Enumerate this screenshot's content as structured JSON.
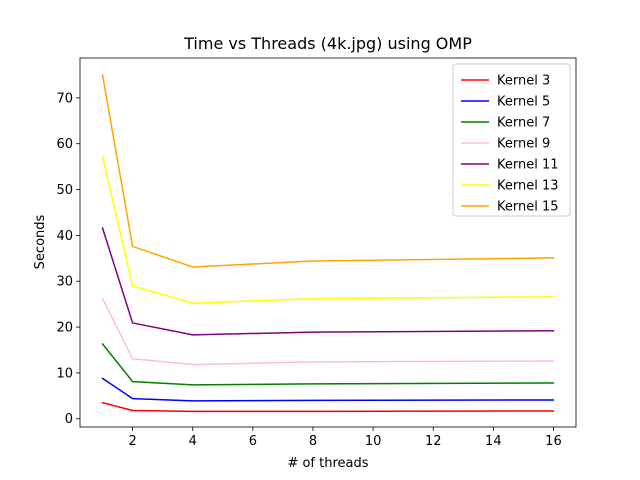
{
  "chart_data": {
    "type": "line",
    "title": "Time vs Threads (4k.jpg) using OMP",
    "xlabel": "# of threads",
    "ylabel": "Seconds",
    "x": [
      1,
      2,
      4,
      8,
      16
    ],
    "xlim": [
      0.25,
      16.75
    ],
    "ylim": [
      -1.8,
      78.7
    ],
    "xticks": [
      2,
      4,
      6,
      8,
      10,
      12,
      14,
      16
    ],
    "yticks": [
      0,
      10,
      20,
      30,
      40,
      50,
      60,
      70
    ],
    "grid": false,
    "legend_position": "top-right",
    "series": [
      {
        "name": "Kernel 3",
        "color": "#ff0000",
        "values": [
          3.5,
          1.8,
          1.6,
          1.6,
          1.7
        ]
      },
      {
        "name": "Kernel 5",
        "color": "#0000ff",
        "values": [
          8.8,
          4.4,
          3.9,
          4.0,
          4.1
        ]
      },
      {
        "name": "Kernel 7",
        "color": "#008000",
        "values": [
          16.3,
          8.1,
          7.4,
          7.6,
          7.8
        ]
      },
      {
        "name": "Kernel 9",
        "color": "#ffc0cb",
        "values": [
          26.2,
          13.1,
          11.8,
          12.4,
          12.6
        ]
      },
      {
        "name": "Kernel 11",
        "color": "#800080",
        "values": [
          41.6,
          20.9,
          18.3,
          18.9,
          19.2
        ]
      },
      {
        "name": "Kernel 13",
        "color": "#ffff00",
        "values": [
          57.2,
          29.0,
          25.2,
          26.2,
          26.6
        ]
      },
      {
        "name": "Kernel 15",
        "color": "#ffa500",
        "values": [
          75.0,
          37.6,
          33.1,
          34.4,
          35.1
        ]
      }
    ]
  }
}
